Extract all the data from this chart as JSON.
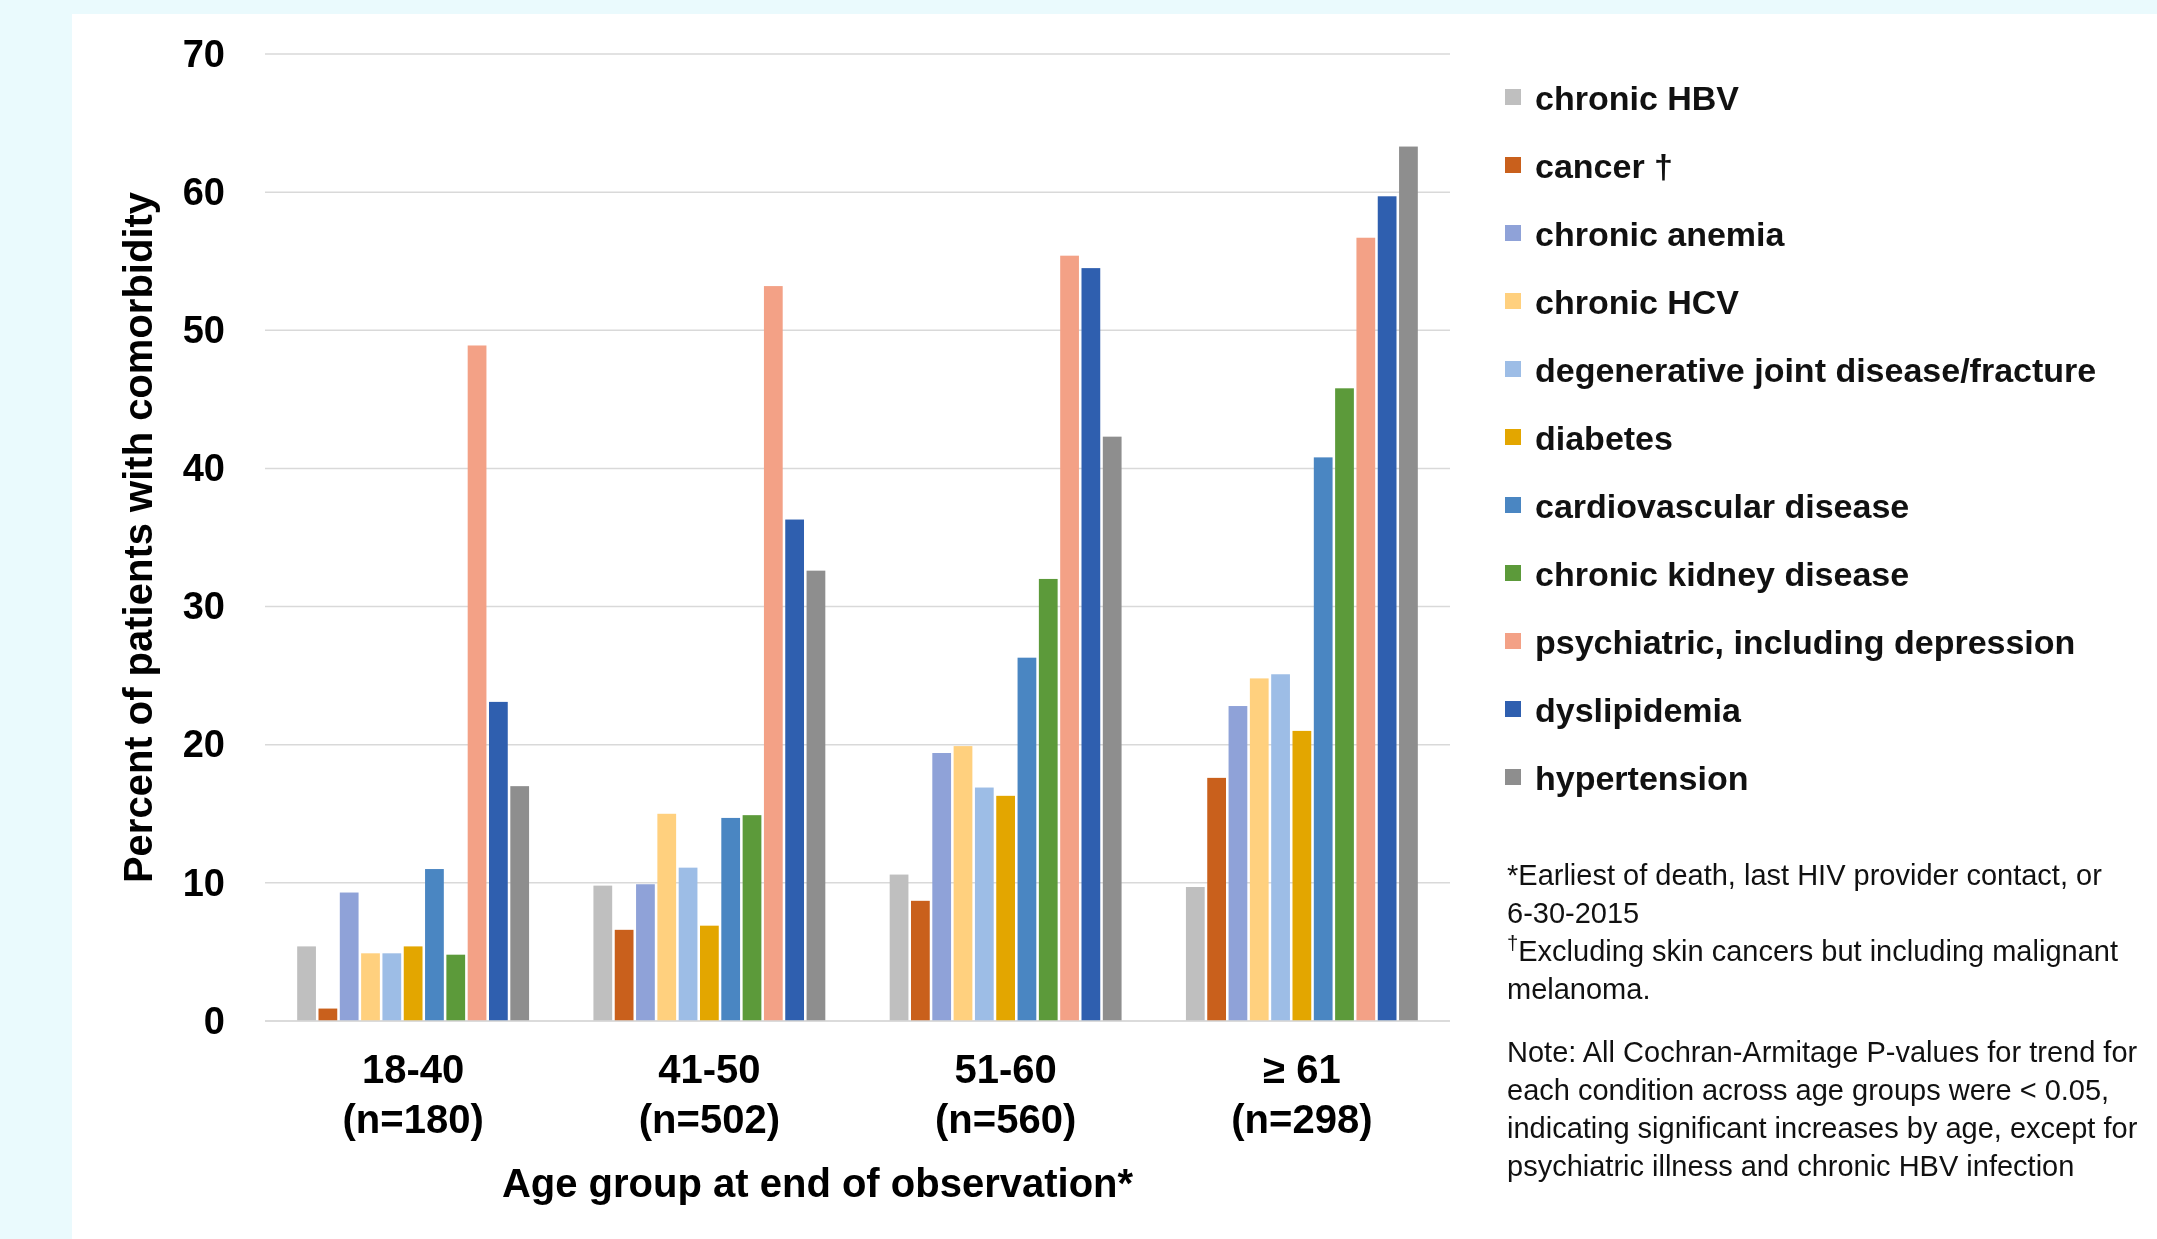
{
  "chart_data": {
    "type": "bar",
    "xlabel": "Age group at end of observation*",
    "ylabel": "Percent of patients with comorbidity",
    "categories": [
      "18-40\n(n=180)",
      "41-50\n(n=502)",
      "51-60\n(n=560)",
      "≥ 61\n(n=298)"
    ],
    "series": [
      {
        "name": "chronic HBV",
        "color": "#bfbfbf",
        "values": [
          5.4,
          9.8,
          10.6,
          9.7
        ]
      },
      {
        "name": "cancer †",
        "color": "#c9601c",
        "values": [
          0.9,
          6.6,
          8.7,
          17.6
        ]
      },
      {
        "name": "chronic anemia",
        "color": "#8fa2d8",
        "values": [
          9.3,
          9.9,
          19.4,
          22.8
        ]
      },
      {
        "name": "chronic HCV",
        "color": "#ffd07e",
        "values": [
          4.9,
          15.0,
          19.9,
          24.8
        ]
      },
      {
        "name": "degenerative joint disease/fracture",
        "color": "#9dbde6",
        "values": [
          4.9,
          11.1,
          16.9,
          25.1
        ]
      },
      {
        "name": "diabetes",
        "color": "#e3a600",
        "values": [
          5.4,
          6.9,
          16.3,
          21.0
        ]
      },
      {
        "name": "cardiovascular disease",
        "color": "#4a86c2",
        "values": [
          11.0,
          14.7,
          26.3,
          40.8
        ]
      },
      {
        "name": "chronic kidney disease",
        "color": "#5c9a3a",
        "values": [
          4.8,
          14.9,
          32.0,
          45.8
        ]
      },
      {
        "name": "psychiatric, including depression",
        "color": "#f3a186",
        "values": [
          48.9,
          53.2,
          55.4,
          56.7
        ]
      },
      {
        "name": "dyslipidemia",
        "color": "#2f5faf",
        "values": [
          23.1,
          36.3,
          54.5,
          59.7
        ]
      },
      {
        "name": "hypertension",
        "color": "#8e8e8e",
        "values": [
          17.0,
          32.6,
          42.3,
          63.3
        ]
      }
    ],
    "ylim": [
      0,
      70
    ],
    "yticks": [
      0,
      10,
      20,
      30,
      40,
      50,
      60,
      70
    ],
    "grid": "y",
    "legend": "right",
    "annotations": [
      "*Earliest of death, last HIV provider contact, or 6-30-2015",
      "$^{†}$Excluding skin cancers but including malignant melanoma.",
      "Note: All Cochran-Armitage P-values for trend for each condition across age groups were < 0.05, indicating significant increases by age, except for psychiatric illness and chronic HBV infection"
    ]
  }
}
